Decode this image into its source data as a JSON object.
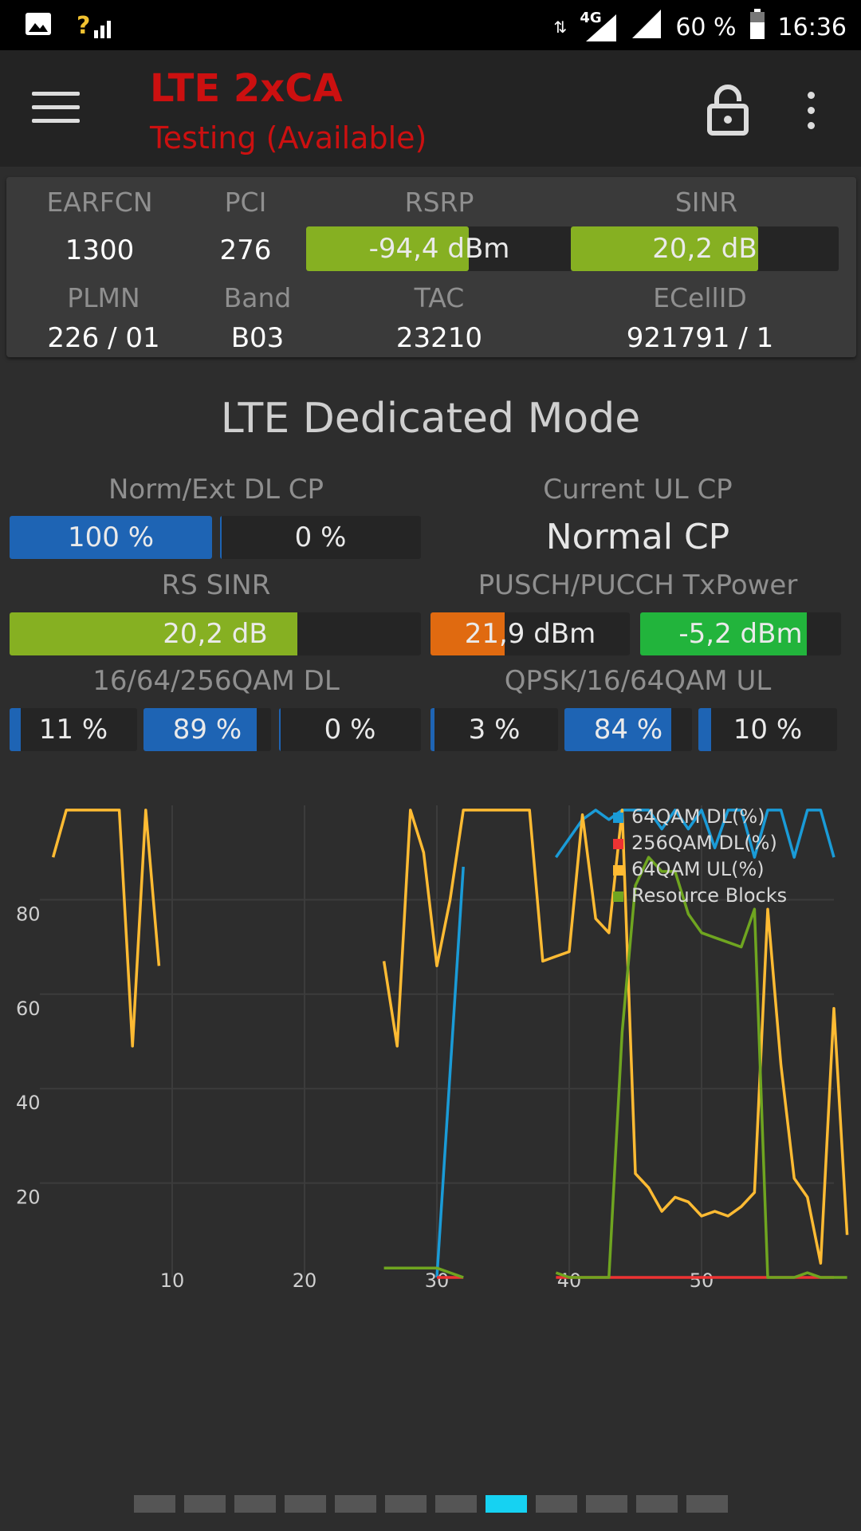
{
  "status_bar": {
    "signal_label": "?",
    "network": "4G",
    "battery": "60 %",
    "time": "16:36"
  },
  "app_bar": {
    "title": "LTE 2xCA",
    "subtitle": "Testing (Available)",
    "menu_icon": "hamburger-menu-icon",
    "lock_icon": "unlocked-padlock-icon",
    "more_icon": "more-vertical-icon"
  },
  "cell_info": {
    "earfcn_label": "EARFCN",
    "earfcn": "1300",
    "pci_label": "PCI",
    "pci": "276",
    "rsrp_label": "RSRP",
    "rsrp": "-94,4 dBm",
    "rsrp_level": 0.61,
    "sinr_label": "SINR",
    "sinr": "20,2 dB",
    "sinr_level": 0.7,
    "plmn_label": "PLMN",
    "plmn": "226 / 01",
    "band_label": "Band",
    "band": "B03",
    "tac_label": "TAC",
    "tac": "23210",
    "ecellid_label": "ECellID",
    "ecellid": "921791 / 1"
  },
  "mode_title": "LTE Dedicated Mode",
  "dl_cp": {
    "label": "Norm/Ext DL CP",
    "normal": "100 %",
    "normal_level": 1.0,
    "extended": "0 %",
    "extended_level": 0.0
  },
  "ul_cp": {
    "label": "Current UL CP",
    "value": "Normal CP"
  },
  "rs_sinr": {
    "label": "RS SINR",
    "value": "20,2 dB",
    "level": 0.7
  },
  "tx_power": {
    "label": "PUSCH/PUCCH TxPower",
    "pusch": "21,9 dBm",
    "pusch_level": 0.37,
    "pucch": "-5,2 dBm",
    "pucch_level": 0.83
  },
  "qam_dl": {
    "label": "16/64/256QAM DL",
    "v16": "11 %",
    "l16": 0.11,
    "v64": "89 %",
    "l64": 0.89,
    "v256": "0 %",
    "l256": 0.0
  },
  "qam_ul": {
    "label": "QPSK/16/64QAM UL",
    "vqpsk": "3 %",
    "lqpsk": 0.03,
    "v16": "84 %",
    "l16": 0.84,
    "v64": "10 %",
    "l64": 0.1
  },
  "colors": {
    "blue_bar": "#1e64b4",
    "green_bar": "#86b022",
    "bright_green": "#22b43c",
    "orange": "#e06a10",
    "line_64dl": "#1a9bd7",
    "line_256dl": "#ee3333",
    "line_64ul": "#ffbb33",
    "line_rb": "#6fa520",
    "pager_active": "#16d2f2"
  },
  "chart_data": {
    "type": "line",
    "x_ticks": [
      "10",
      "20",
      "30",
      "40",
      "50"
    ],
    "y_ticks": [
      "20",
      "40",
      "60",
      "80"
    ],
    "xlim": [
      0,
      60
    ],
    "ylim": [
      0,
      100
    ],
    "legend_position": "top-right",
    "series": [
      {
        "name": "64QAM DL(%)",
        "color": "#1a9bd7",
        "segments": [
          [
            [
              30,
              0
            ],
            [
              32,
              87
            ]
          ],
          [
            [
              39,
              89
            ],
            [
              41,
              97
            ],
            [
              42,
              99
            ],
            [
              43,
              97
            ],
            [
              44,
              99
            ],
            [
              45,
              99
            ],
            [
              46,
              99
            ],
            [
              47,
              95
            ],
            [
              48,
              99
            ],
            [
              49,
              95
            ],
            [
              50,
              99
            ],
            [
              51,
              91
            ],
            [
              52,
              99
            ],
            [
              53,
              99
            ],
            [
              54,
              89
            ],
            [
              55,
              99
            ],
            [
              56,
              99
            ],
            [
              57,
              89
            ],
            [
              58,
              99
            ],
            [
              59,
              99
            ],
            [
              60,
              89
            ]
          ]
        ]
      },
      {
        "name": "256QAM DL(%)",
        "color": "#ee3333",
        "segments": [
          [
            [
              30,
              0
            ],
            [
              32,
              0
            ]
          ],
          [
            [
              39,
              0
            ],
            [
              60,
              0
            ]
          ]
        ]
      },
      {
        "name": "64QAM UL(%)",
        "color": "#ffbb33",
        "segments": [
          [
            [
              1,
              89
            ],
            [
              2,
              99
            ],
            [
              3,
              99
            ],
            [
              4,
              99
            ],
            [
              5,
              99
            ],
            [
              6,
              99
            ],
            [
              7,
              49
            ],
            [
              8,
              99
            ],
            [
              9,
              66
            ]
          ],
          [
            [
              26,
              67
            ],
            [
              27,
              49
            ],
            [
              28,
              99
            ],
            [
              29,
              90
            ],
            [
              30,
              66
            ],
            [
              31,
              80
            ],
            [
              32,
              99
            ],
            [
              33,
              99
            ],
            [
              34,
              99
            ],
            [
              35,
              99
            ],
            [
              36,
              99
            ],
            [
              37,
              99
            ],
            [
              38,
              67
            ],
            [
              39,
              68
            ],
            [
              40,
              69
            ],
            [
              41,
              98
            ],
            [
              42,
              76
            ],
            [
              43,
              73
            ],
            [
              44,
              99
            ],
            [
              45,
              22
            ],
            [
              46,
              19
            ],
            [
              47,
              14
            ],
            [
              48,
              17
            ],
            [
              49,
              16
            ],
            [
              50,
              13
            ],
            [
              51,
              14
            ],
            [
              52,
              13
            ],
            [
              53,
              15
            ],
            [
              54,
              18
            ],
            [
              55,
              78
            ],
            [
              56,
              45
            ],
            [
              57,
              21
            ],
            [
              58,
              17
            ],
            [
              59,
              3
            ],
            [
              60,
              57
            ],
            [
              61,
              9
            ]
          ]
        ]
      },
      {
        "name": "Resource Blocks",
        "color": "#6fa520",
        "segments": [
          [
            [
              26,
              2
            ],
            [
              27,
              2
            ],
            [
              28,
              2
            ],
            [
              29,
              2
            ],
            [
              30,
              2
            ],
            [
              31,
              1
            ],
            [
              32,
              0
            ]
          ],
          [
            [
              39,
              1
            ],
            [
              40,
              0
            ],
            [
              41,
              0
            ],
            [
              42,
              0
            ],
            [
              43,
              0
            ],
            [
              44,
              52
            ],
            [
              45,
              83
            ],
            [
              46,
              89
            ],
            [
              47,
              86
            ],
            [
              48,
              86
            ],
            [
              49,
              77
            ],
            [
              50,
              73
            ],
            [
              51,
              72
            ],
            [
              52,
              71
            ],
            [
              53,
              70
            ],
            [
              54,
              78
            ],
            [
              55,
              0
            ],
            [
              56,
              0
            ],
            [
              57,
              0
            ],
            [
              58,
              1
            ],
            [
              59,
              0
            ],
            [
              60,
              0
            ],
            [
              61,
              0
            ]
          ]
        ]
      }
    ]
  }
}
